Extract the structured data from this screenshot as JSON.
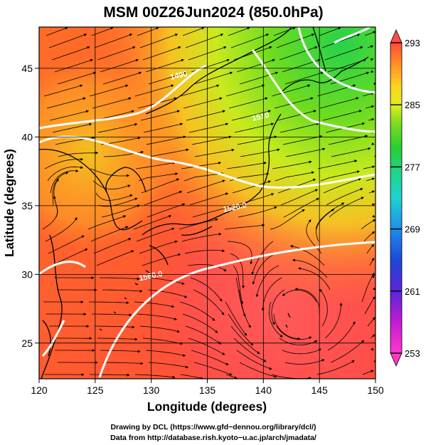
{
  "title": "MSM 00Z26Jun2024 (850.0hPa)",
  "map": {
    "lon_range": [
      120,
      150
    ],
    "lat_range": [
      22.4,
      48
    ],
    "xlabel": "Longitude (degrees)",
    "ylabel": "Latitude  (degrees)",
    "x_ticks": [
      "120",
      "125",
      "130",
      "135",
      "140",
      "145",
      "150"
    ],
    "x_tick_values": [
      120,
      125,
      130,
      135,
      140,
      145,
      150
    ],
    "y_ticks": [
      "25",
      "30",
      "35",
      "40",
      "45"
    ],
    "y_tick_values": [
      25,
      30,
      35,
      40,
      45
    ],
    "grid": true,
    "contour_labels": [
      "1490",
      "1510",
      "1520.0",
      "1560.0"
    ],
    "contour_label_positions": [
      {
        "lon": 132.5,
        "lat": 44.3
      },
      {
        "lon": 139.8,
        "lat": 41.3
      },
      {
        "lon": 137.5,
        "lat": 34.7
      },
      {
        "lon": 130.0,
        "lat": 29.7
      }
    ]
  },
  "colorbar": {
    "min": 253,
    "max": 293,
    "labels": [
      "293",
      "285",
      "277",
      "269",
      "261",
      "253"
    ],
    "colors": [
      "#ff3d78",
      "#ef1fb3",
      "#b715d4",
      "#6b23d9",
      "#2e3ad6",
      "#1a6ae6",
      "#1fa5ec",
      "#1dd0cf",
      "#1fd89b",
      "#22cf3b",
      "#6ddc1c",
      "#c6ef1c",
      "#f3ea1a",
      "#ffc224",
      "#ff9524",
      "#ff6a24",
      "#ff4b2c",
      "#ff5563"
    ]
  },
  "credits": [
    "Drawing by DCL (https://www.gfd−dennou.org/library/dcl/)",
    "Data from http://database.rish.kyoto−u.ac.jp/arch/jmadata/"
  ]
}
